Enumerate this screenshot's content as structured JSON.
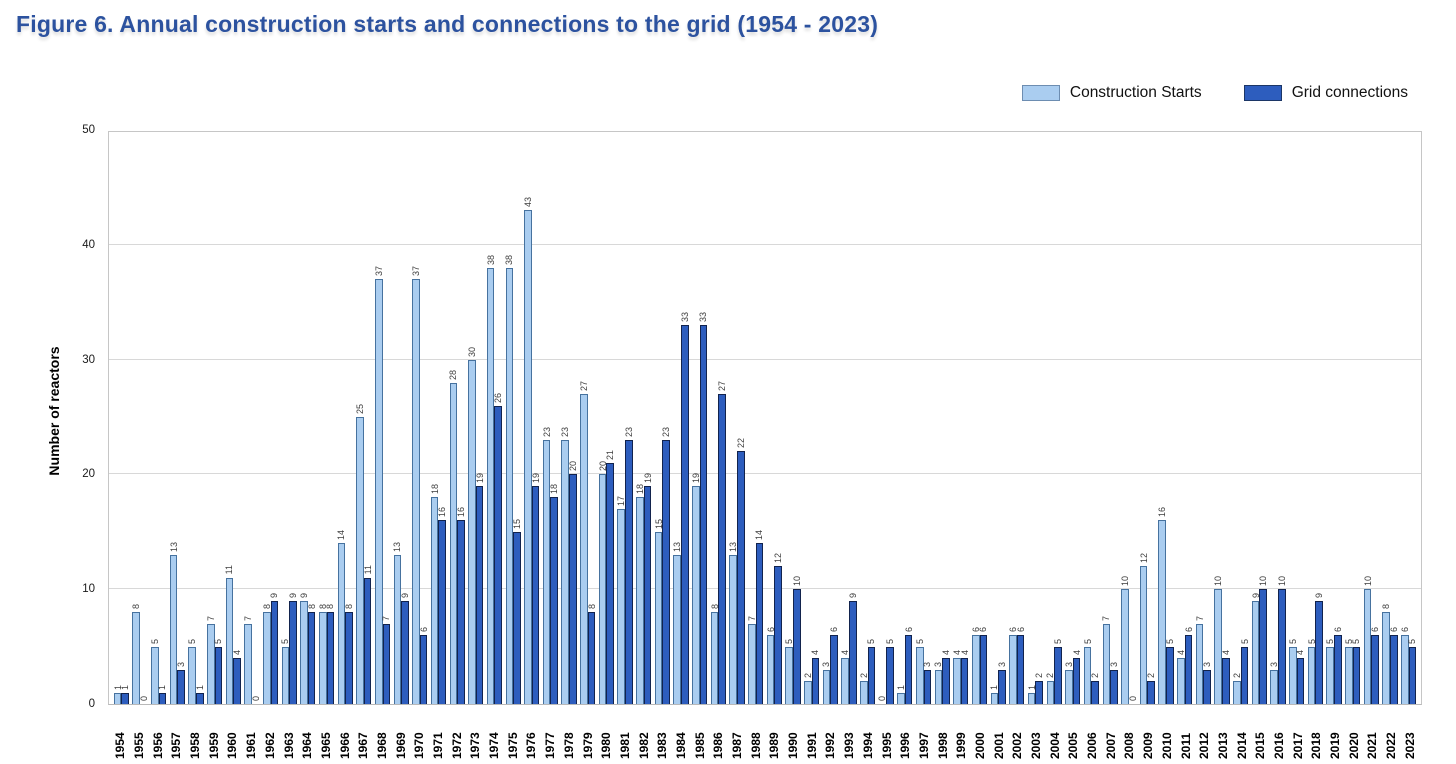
{
  "title": "Figure 6. Annual construction starts and connections to the grid (1954 - 2023)",
  "legend": {
    "items": [
      {
        "label": "Construction Starts",
        "color": "#aacdf0"
      },
      {
        "label": "Grid connections",
        "color": "#2d5dbe"
      }
    ]
  },
  "y_axis": {
    "title": "Number of reactors",
    "ticks": [
      0,
      10,
      20,
      30,
      40,
      50
    ]
  },
  "chart_data": {
    "type": "bar",
    "title": "Figure 6. Annual construction starts and connections to the grid (1954 - 2023)",
    "xlabel": "",
    "ylabel": "Number of reactors",
    "ylim": [
      0,
      50
    ],
    "grid": true,
    "legend_position": "top-right",
    "bar_value_labels": "rotated-90",
    "categories": [
      1954,
      1955,
      1956,
      1957,
      1958,
      1959,
      1960,
      1961,
      1962,
      1963,
      1964,
      1965,
      1966,
      1967,
      1968,
      1969,
      1970,
      1971,
      1972,
      1973,
      1974,
      1975,
      1976,
      1977,
      1978,
      1979,
      1980,
      1981,
      1982,
      1983,
      1984,
      1985,
      1986,
      1987,
      1988,
      1989,
      1990,
      1991,
      1992,
      1993,
      1994,
      1995,
      1996,
      1997,
      1998,
      1999,
      2000,
      2001,
      2002,
      2003,
      2004,
      2005,
      2006,
      2007,
      2008,
      2009,
      2010,
      2011,
      2012,
      2013,
      2014,
      2015,
      2016,
      2017,
      2018,
      2019,
      2020,
      2021,
      2022,
      2023
    ],
    "series": [
      {
        "name": "Construction Starts",
        "color": "#aacdf0",
        "border_color": "#46729f",
        "values": [
          1,
          8,
          5,
          13,
          5,
          7,
          11,
          7,
          8,
          5,
          9,
          8,
          14,
          25,
          37,
          13,
          37,
          18,
          28,
          30,
          38,
          38,
          43,
          23,
          23,
          27,
          20,
          17,
          18,
          15,
          13,
          19,
          8,
          13,
          7,
          6,
          5,
          2,
          3,
          4,
          2,
          0,
          1,
          5,
          3,
          4,
          6,
          1,
          6,
          1,
          2,
          3,
          5,
          7,
          10,
          12,
          16,
          4,
          7,
          10,
          2,
          9,
          3,
          5,
          5,
          5,
          5,
          10,
          8,
          6
        ]
      },
      {
        "name": "Grid connections",
        "color": "#2d5dbe",
        "border_color": "#12234d",
        "values": [
          1,
          0,
          1,
          3,
          1,
          5,
          4,
          0,
          9,
          9,
          8,
          8,
          8,
          11,
          7,
          9,
          6,
          16,
          16,
          19,
          26,
          15,
          19,
          18,
          20,
          8,
          21,
          23,
          19,
          23,
          33,
          33,
          27,
          22,
          14,
          12,
          10,
          4,
          6,
          9,
          5,
          5,
          6,
          3,
          4,
          4,
          6,
          3,
          6,
          2,
          5,
          4,
          2,
          3,
          0,
          2,
          5,
          6,
          3,
          4,
          5,
          10,
          10,
          4,
          9,
          6,
          5,
          6,
          6,
          5
        ]
      }
    ]
  }
}
